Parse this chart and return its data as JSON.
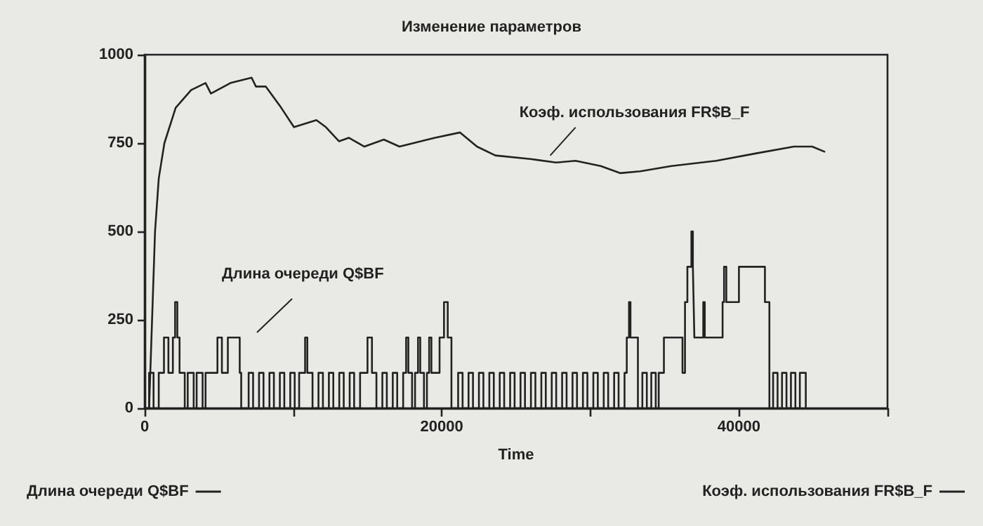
{
  "chart_data": {
    "type": "line",
    "title": "Изменение параметров",
    "xlabel": "Time",
    "xlim": [
      0,
      50000
    ],
    "xticks": [
      0,
      {
        "value": 10000,
        "label": null
      },
      20000,
      {
        "value": 30000,
        "label": null
      },
      40000,
      {
        "value": 50000,
        "label": null
      }
    ],
    "ylim": [
      0,
      1000
    ],
    "yticks": [
      0,
      250,
      500,
      750,
      1000
    ],
    "grid": false,
    "legend": "bottom",
    "marker": "none",
    "line_style": "solid",
    "annotations": [
      {
        "text": "Коэф. использования FR$B_F",
        "x": 27300,
        "y": 715
      },
      "Длина очереди Q$BF"
    ],
    "series": [
      {
        "name": "Длина очереди Q$BF",
        "type": "step",
        "color": "#222222",
        "x": [
          0,
          300,
          600,
          950,
          1300,
          1600,
          1900,
          2050,
          2200,
          2350,
          2700,
          2900,
          3300,
          3500,
          3900,
          4100,
          4900,
          5200,
          5600,
          6400,
          6500,
          7000,
          7300,
          7700,
          8000,
          8400,
          8700,
          9100,
          9400,
          9800,
          10100,
          10400,
          10800,
          10950,
          11300,
          11700,
          12000,
          12400,
          12700,
          13100,
          13400,
          13800,
          14100,
          14500,
          15000,
          15300,
          15600,
          16000,
          16300,
          16700,
          17000,
          17400,
          17600,
          17750,
          18000,
          18200,
          18400,
          18550,
          18800,
          19000,
          19150,
          19300,
          19850,
          20150,
          20400,
          20650,
          21100,
          21400,
          21800,
          22100,
          22500,
          22800,
          23200,
          23500,
          23900,
          24200,
          24600,
          24900,
          25300,
          25600,
          26000,
          26300,
          26700,
          27000,
          27400,
          27700,
          28100,
          28400,
          28800,
          29100,
          29500,
          29800,
          30200,
          30500,
          30900,
          31200,
          31600,
          31900,
          32300,
          32450,
          32600,
          32700,
          33200,
          33500,
          33800,
          34100,
          34400,
          34600,
          34950,
          36200,
          36370,
          36530,
          36800,
          36900,
          36950,
          37000,
          37600,
          37700,
          38900,
          39000,
          39150,
          40000,
          41750,
          42050,
          42300,
          42600,
          42900,
          43200,
          43500,
          43800,
          44100,
          44500
        ],
        "values": [
          0,
          100,
          0,
          100,
          200,
          100,
          200,
          300,
          200,
          100,
          0,
          100,
          0,
          100,
          0,
          100,
          200,
          100,
          200,
          100,
          0,
          100,
          0,
          100,
          0,
          100,
          0,
          100,
          0,
          100,
          0,
          100,
          200,
          100,
          0,
          100,
          0,
          100,
          0,
          100,
          0,
          100,
          0,
          100,
          200,
          100,
          0,
          100,
          0,
          100,
          0,
          100,
          200,
          100,
          0,
          100,
          200,
          100,
          0,
          100,
          200,
          100,
          200,
          300,
          200,
          0,
          100,
          0,
          100,
          0,
          100,
          0,
          100,
          0,
          100,
          0,
          100,
          0,
          100,
          0,
          100,
          0,
          100,
          0,
          100,
          0,
          100,
          0,
          100,
          0,
          100,
          0,
          100,
          0,
          100,
          0,
          100,
          0,
          100,
          200,
          300,
          200,
          0,
          100,
          0,
          100,
          0,
          100,
          200,
          100,
          300,
          400,
          500,
          400,
          300,
          200,
          300,
          200,
          300,
          400,
          300,
          400,
          300,
          0,
          100,
          0,
          100,
          0,
          100,
          0,
          100,
          0
        ]
      },
      {
        "name": "Коэф. использования FR$B_F",
        "color": "#222222",
        "x": [
          0,
          300,
          700,
          950,
          1330,
          2090,
          3130,
          4100,
          4460,
          5780,
          7200,
          7490,
          8150,
          9190,
          10050,
          11560,
          12200,
          13080,
          13740,
          14790,
          16100,
          17150,
          19530,
          21230,
          22370,
          23600,
          25970,
          27700,
          29000,
          30700,
          32000,
          33360,
          35450,
          38480,
          41040,
          43700,
          44930,
          45800
        ],
        "values": [
          0,
          0,
          500,
          650,
          750,
          850,
          900,
          920,
          890,
          920,
          935,
          910,
          910,
          850,
          795,
          815,
          795,
          755,
          765,
          740,
          760,
          740,
          765,
          780,
          740,
          715,
          705,
          695,
          700,
          685,
          665,
          670,
          685,
          700,
          720,
          740,
          740,
          725
        ]
      }
    ]
  }
}
